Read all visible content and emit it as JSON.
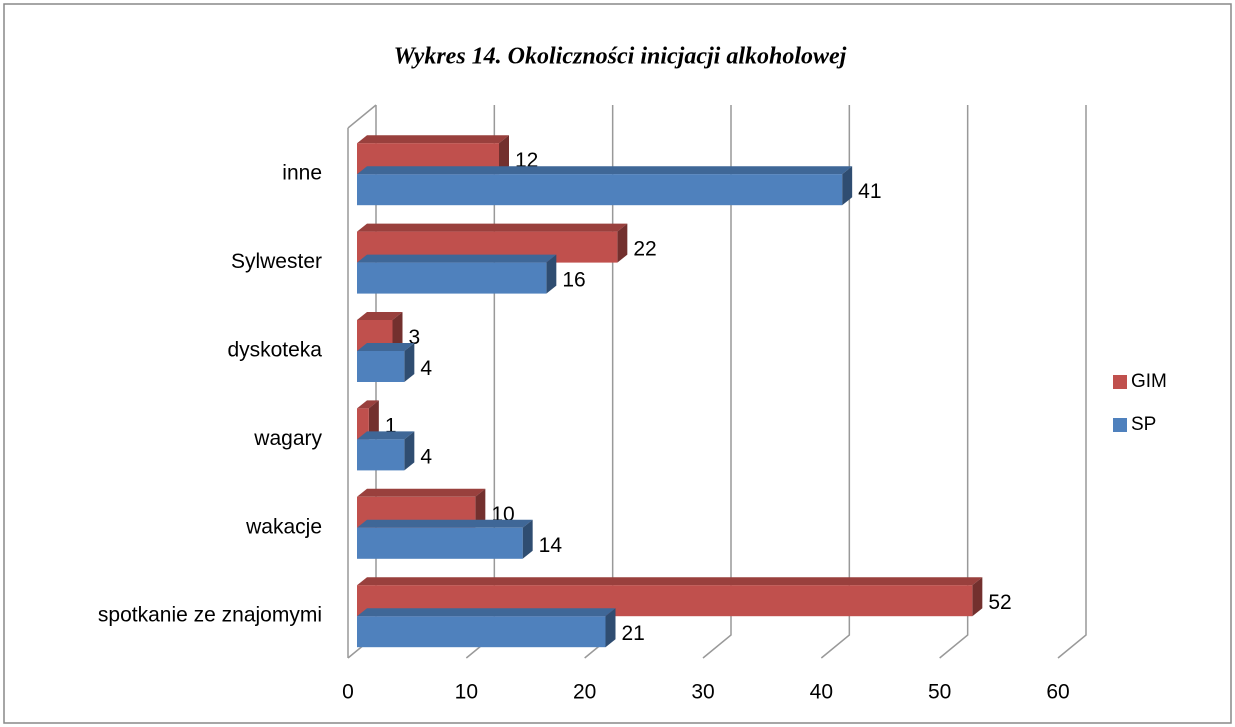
{
  "chart_data": {
    "type": "bar",
    "orientation": "horizontal",
    "three_d": true,
    "title": "Wykres 14. Okoliczności inicjacji alkoholowej",
    "categories": [
      "inne",
      "Sylwester",
      "dyskoteka",
      "wagary",
      "wakacje",
      "spotkanie ze znajomymi"
    ],
    "series": [
      {
        "name": "GIM",
        "color": "#c0504d",
        "values": [
          12,
          22,
          3,
          1,
          10,
          52
        ]
      },
      {
        "name": "SP",
        "color": "#4f81bd",
        "values": [
          41,
          16,
          4,
          4,
          14,
          21
        ]
      }
    ],
    "xlim": [
      0,
      60
    ],
    "xticks": [
      0,
      10,
      20,
      30,
      40,
      50,
      60
    ],
    "grid": true,
    "legend": "right"
  }
}
